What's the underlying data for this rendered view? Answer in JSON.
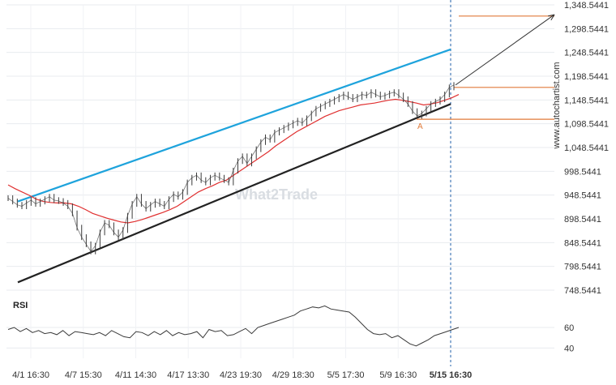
{
  "chart_data": [
    {
      "type": "line",
      "panel": "price",
      "y_axis_ticks": [
        "1,348.5441",
        "1,298.5441",
        "1,248.5441",
        "1,198.5441",
        "1,148.5441",
        "1,098.5441",
        "1,048.5441",
        "998.5441",
        "948.5441",
        "898.5441",
        "848.5441",
        "798.5441",
        "748.5441"
      ],
      "ylim": [
        748.5441,
        1348.5441
      ],
      "x_tick_labels": [
        "4/1 16:30",
        "4/7 15:30",
        "4/11 14:30",
        "4/17 13:30",
        "4/23 19:30",
        "4/29 18:30",
        "5/5 17:30",
        "5/9 16:30",
        "5/15 16:30"
      ],
      "highlighted_x_label": "5/15 16:30",
      "series": [
        {
          "role": "price",
          "color": "#3a3a3a",
          "values": [
            942,
            935,
            928,
            925,
            932,
            938,
            930,
            935,
            940,
            945,
            938,
            936,
            932,
            925,
            910,
            880,
            860,
            845,
            830,
            842,
            870,
            890,
            885,
            870,
            860,
            875,
            905,
            930,
            945,
            930,
            920,
            928,
            935,
            930,
            925,
            940,
            950,
            945,
            955,
            975,
            985,
            990,
            980,
            975,
            985,
            990,
            985,
            980,
            975,
            1000,
            1020,
            1030,
            1015,
            1030,
            1045,
            1060,
            1070,
            1065,
            1080,
            1085,
            1090,
            1095,
            1100,
            1105,
            1100,
            1110,
            1120,
            1130,
            1135,
            1140,
            1145,
            1150,
            1155,
            1160,
            1155,
            1150,
            1155,
            1160,
            1158,
            1165,
            1160,
            1155,
            1158,
            1162,
            1165,
            1158,
            1150,
            1140,
            1125,
            1115,
            1120,
            1130,
            1140,
            1145,
            1150,
            1160,
            1175,
            1180
          ]
        },
        {
          "role": "moving-average",
          "color": "#e03030",
          "values": [
            970,
            962,
            955,
            948,
            940,
            935,
            933,
            932,
            932,
            930,
            925,
            918,
            910,
            905,
            900,
            896,
            892,
            890,
            893,
            897,
            902,
            907,
            912,
            918,
            925,
            935,
            945,
            955,
            962,
            968,
            975,
            980,
            990,
            1000,
            1010,
            1020,
            1030,
            1040,
            1052,
            1062,
            1072,
            1082,
            1090,
            1098,
            1106,
            1114,
            1120,
            1126,
            1130,
            1134,
            1138,
            1140,
            1142,
            1145,
            1148,
            1150,
            1148,
            1145,
            1142,
            1138,
            1140,
            1143,
            1148,
            1153,
            1160
          ]
        },
        {
          "role": "upper-channel",
          "color": "#1ea3dc",
          "values": [
            935,
            1255
          ]
        },
        {
          "role": "lower-channel",
          "color": "#222222",
          "values": [
            765,
            1140
          ]
        }
      ],
      "levels": [
        {
          "value": 1325,
          "color": "#e07a3a"
        },
        {
          "value": 1175,
          "color": "#e07a3a"
        },
        {
          "value": 1108,
          "color": "#e07a3a"
        }
      ],
      "marker_label": "A",
      "arrow_target": 1328
    },
    {
      "type": "line",
      "panel": "rsi",
      "title": "RSI",
      "y_axis_ticks": [
        "60",
        "40"
      ],
      "ylim": [
        30,
        90
      ],
      "series": [
        {
          "role": "rsi",
          "color": "#3a3a3a",
          "values": [
            58,
            60,
            56,
            59,
            55,
            57,
            54,
            55,
            53,
            57,
            52,
            56,
            55,
            54,
            53,
            55,
            52,
            57,
            54,
            51,
            50,
            56,
            55,
            52,
            56,
            53,
            57,
            52,
            55,
            53,
            54,
            56,
            50,
            58,
            56,
            57,
            52,
            53,
            56,
            59,
            54,
            60,
            62,
            64,
            66,
            68,
            70,
            72,
            76,
            78,
            80,
            79,
            81,
            78,
            77,
            76,
            75,
            70,
            64,
            58,
            54,
            53,
            54,
            50,
            52,
            48,
            44,
            42,
            45,
            48,
            52,
            54,
            56,
            58,
            60
          ]
        }
      ]
    }
  ],
  "branding": {
    "vertical_text": "www.autochartist.com",
    "watermark": "What2Trade"
  }
}
